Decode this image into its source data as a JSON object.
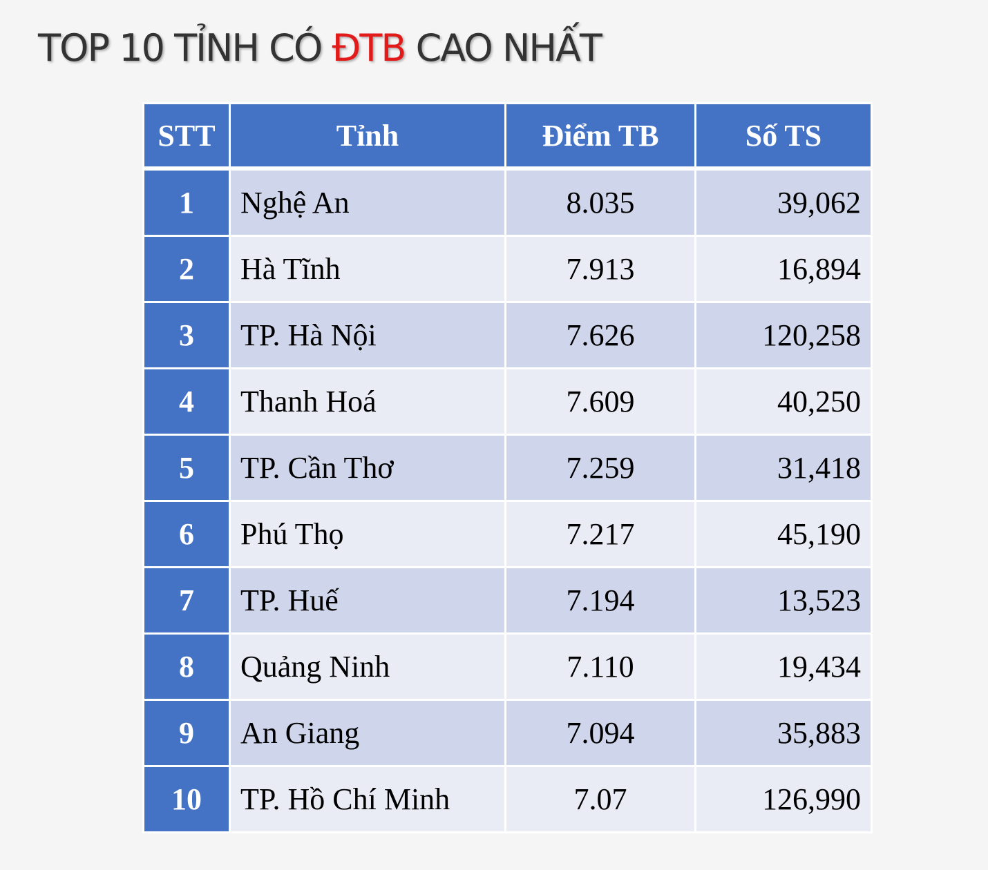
{
  "title": {
    "parts": [
      "TOP 10 TỈNH CÓ ",
      "ĐTB",
      " CAO NHẤT"
    ]
  },
  "table": {
    "header": [
      "STT",
      "Tỉnh",
      "Điểm TB",
      "Số TS"
    ],
    "rows": [
      [
        "1",
        "Nghệ An",
        "8.035",
        "39,062"
      ],
      [
        "2",
        "Hà Tĩnh",
        "7.913",
        "16,894"
      ],
      [
        "3",
        "TP. Hà Nội",
        "7.626",
        "120,258"
      ],
      [
        "4",
        "Thanh Hoá",
        "7.609",
        "40,250"
      ],
      [
        "5",
        "TP. Cần Thơ",
        "7.259",
        "31,418"
      ],
      [
        "6",
        "Phú Thọ",
        "7.217",
        "45,190"
      ],
      [
        "7",
        "TP. Huế",
        "7.194",
        "13,523"
      ],
      [
        "8",
        "Quảng Ninh",
        "7.110",
        "19,434"
      ],
      [
        "9",
        "An Giang",
        "7.094",
        "35,883"
      ],
      [
        "10",
        "TP. Hồ Chí Minh",
        "7.07",
        "126,990"
      ]
    ]
  }
}
